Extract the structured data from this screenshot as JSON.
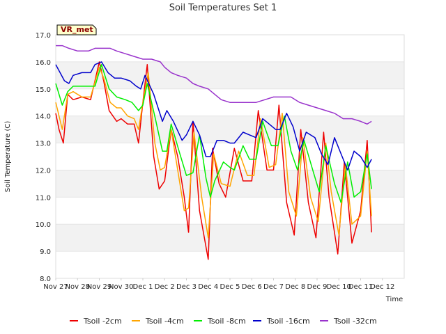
{
  "chart_data": {
    "type": "line",
    "title": "Soil Temperatures Set 1",
    "xlabel": "Time",
    "ylabel": "Soil Temperature (C)",
    "badge": "VR_met",
    "ylim": [
      8.0,
      17.0
    ],
    "yticks": [
      "8.0",
      "9.0",
      "10.0",
      "11.0",
      "12.0",
      "13.0",
      "14.0",
      "15.0",
      "16.0",
      "17.0"
    ],
    "xlim": [
      0,
      16
    ],
    "xticks": [
      "Nov 27",
      "Nov 28",
      "Nov 29",
      "Nov 30",
      "Dec 1",
      "Dec 2",
      "Dec 3",
      "Dec 4",
      "Dec 5",
      "Dec 6",
      "Dec 7",
      "Dec 8",
      "Dec 9",
      "Dec 10",
      "Dec 11",
      "Dec 12"
    ],
    "grid": "horizontal bands",
    "legend_position": "bottom",
    "series": [
      {
        "name": "Tsoil -2cm",
        "color": "#ee0000",
        "x": [
          0,
          0.15,
          0.35,
          0.55,
          0.8,
          1.2,
          1.6,
          2.0,
          2.2,
          2.45,
          2.8,
          3.0,
          3.3,
          3.6,
          3.8,
          4.0,
          4.2,
          4.5,
          4.75,
          5.0,
          5.3,
          5.6,
          5.9,
          6.1,
          6.3,
          6.6,
          7.0,
          7.2,
          7.5,
          7.8,
          8.2,
          8.6,
          9.0,
          9.3,
          9.7,
          10.0,
          10.25,
          10.6,
          10.95,
          11.25,
          11.6,
          11.95,
          12.3,
          12.55,
          12.95,
          13.25,
          13.6,
          14.0,
          14.3,
          14.5
        ],
        "values": [
          14.1,
          13.5,
          13.0,
          14.8,
          14.6,
          14.7,
          14.6,
          16.0,
          15.3,
          14.2,
          13.8,
          13.9,
          13.7,
          13.7,
          13.0,
          14.5,
          15.9,
          12.5,
          11.3,
          11.6,
          13.5,
          12.5,
          11.0,
          9.7,
          13.8,
          10.5,
          8.7,
          12.8,
          11.5,
          11.0,
          12.8,
          11.6,
          11.6,
          14.2,
          12.0,
          12.0,
          14.4,
          10.8,
          9.6,
          13.5,
          10.8,
          9.5,
          13.4,
          11.0,
          8.9,
          12.3,
          9.3,
          10.5,
          13.1,
          9.7
        ]
      },
      {
        "name": "Tsoil -4cm",
        "color": "#ffa500",
        "x": [
          0,
          0.3,
          0.55,
          0.8,
          1.2,
          1.6,
          2.0,
          2.2,
          2.5,
          2.8,
          3.0,
          3.3,
          3.6,
          3.8,
          4.0,
          4.25,
          4.55,
          4.8,
          5.0,
          5.3,
          5.6,
          5.9,
          6.1,
          6.35,
          6.7,
          7.0,
          7.25,
          7.6,
          8.0,
          8.4,
          8.8,
          9.1,
          9.4,
          9.8,
          10.1,
          10.4,
          10.7,
          11.05,
          11.35,
          11.7,
          12.05,
          12.4,
          12.65,
          13.0,
          13.3,
          13.6,
          14.0,
          14.3,
          14.5
        ],
        "values": [
          14.5,
          13.5,
          14.8,
          14.9,
          14.7,
          14.7,
          15.8,
          15.4,
          14.5,
          14.3,
          14.3,
          14.0,
          13.9,
          13.5,
          14.5,
          15.6,
          13.0,
          12.0,
          12.1,
          13.5,
          12.0,
          10.5,
          10.6,
          13.4,
          11.0,
          9.5,
          12.6,
          11.5,
          11.4,
          12.7,
          11.8,
          11.8,
          13.9,
          12.1,
          12.2,
          14.1,
          11.2,
          10.3,
          13.2,
          11.0,
          10.1,
          13.0,
          11.2,
          9.6,
          12.2,
          10.0,
          10.3,
          12.7,
          10.3
        ]
      },
      {
        "name": "Tsoil -8cm",
        "color": "#00ee00",
        "x": [
          0,
          0.3,
          0.55,
          0.8,
          1.2,
          1.5,
          1.8,
          2.1,
          2.45,
          2.8,
          3.2,
          3.5,
          3.8,
          4.0,
          4.2,
          4.6,
          4.9,
          5.1,
          5.3,
          5.7,
          6.0,
          6.3,
          6.6,
          6.9,
          7.1,
          7.3,
          7.7,
          8.0,
          8.2,
          8.6,
          8.9,
          9.2,
          9.5,
          9.9,
          10.2,
          10.5,
          10.8,
          11.1,
          11.4,
          11.8,
          12.1,
          12.4,
          12.8,
          13.1,
          13.4,
          13.7,
          14.0,
          14.3,
          14.5
        ],
        "values": [
          15.2,
          14.4,
          14.9,
          15.1,
          15.1,
          15.1,
          15.1,
          15.9,
          15.0,
          14.7,
          14.6,
          14.5,
          14.2,
          14.4,
          15.2,
          13.8,
          12.7,
          12.7,
          13.7,
          12.6,
          11.8,
          11.9,
          13.3,
          11.7,
          11.0,
          11.6,
          12.3,
          12.1,
          12.0,
          12.9,
          12.4,
          12.4,
          13.8,
          12.9,
          12.9,
          14.0,
          12.7,
          12.0,
          13.1,
          12.0,
          11.2,
          12.9,
          11.5,
          10.8,
          12.3,
          11.0,
          11.2,
          12.6,
          11.3
        ]
      },
      {
        "name": "Tsoil -16cm",
        "color": "#0000cc",
        "x": [
          0,
          0.4,
          0.6,
          0.8,
          1.2,
          1.6,
          1.8,
          2.1,
          2.4,
          2.7,
          3.0,
          3.4,
          3.7,
          3.9,
          4.1,
          4.5,
          4.9,
          5.1,
          5.4,
          5.8,
          6.0,
          6.3,
          6.6,
          6.9,
          7.1,
          7.4,
          7.7,
          8.0,
          8.2,
          8.6,
          8.9,
          9.2,
          9.5,
          9.8,
          10.1,
          10.3,
          10.6,
          10.9,
          11.2,
          11.5,
          11.9,
          12.2,
          12.5,
          12.8,
          13.1,
          13.4,
          13.7,
          14.0,
          14.3,
          14.5
        ],
        "values": [
          15.9,
          15.3,
          15.2,
          15.5,
          15.6,
          15.6,
          15.9,
          16.0,
          15.6,
          15.4,
          15.4,
          15.3,
          15.1,
          15.0,
          15.5,
          14.8,
          13.8,
          14.2,
          13.8,
          13.1,
          13.3,
          13.8,
          13.3,
          12.5,
          12.5,
          13.1,
          13.1,
          13.0,
          13.0,
          13.4,
          13.3,
          13.2,
          13.9,
          13.7,
          13.5,
          13.5,
          14.1,
          13.6,
          12.7,
          13.4,
          13.2,
          12.6,
          12.2,
          13.2,
          12.6,
          12.0,
          12.7,
          12.5,
          12.1,
          12.4
        ]
      },
      {
        "name": "Tsoil -32cm",
        "color": "#9933cc",
        "x": [
          0,
          0.3,
          0.6,
          1.0,
          1.5,
          1.8,
          2.1,
          2.5,
          2.8,
          3.2,
          3.6,
          4.0,
          4.4,
          4.8,
          5.0,
          5.3,
          5.6,
          6.0,
          6.3,
          6.6,
          7.0,
          7.3,
          7.6,
          8.0,
          8.4,
          8.8,
          9.2,
          9.6,
          10.0,
          10.4,
          10.8,
          11.2,
          11.6,
          12.0,
          12.4,
          12.8,
          13.2,
          13.6,
          14.0,
          14.3,
          14.5
        ],
        "values": [
          16.6,
          16.6,
          16.5,
          16.4,
          16.4,
          16.5,
          16.5,
          16.5,
          16.4,
          16.3,
          16.2,
          16.1,
          16.1,
          16.0,
          15.8,
          15.6,
          15.5,
          15.4,
          15.2,
          15.1,
          15.0,
          14.8,
          14.6,
          14.5,
          14.5,
          14.5,
          14.5,
          14.6,
          14.7,
          14.7,
          14.7,
          14.5,
          14.4,
          14.3,
          14.2,
          14.1,
          13.9,
          13.9,
          13.8,
          13.7,
          13.8
        ]
      }
    ]
  }
}
